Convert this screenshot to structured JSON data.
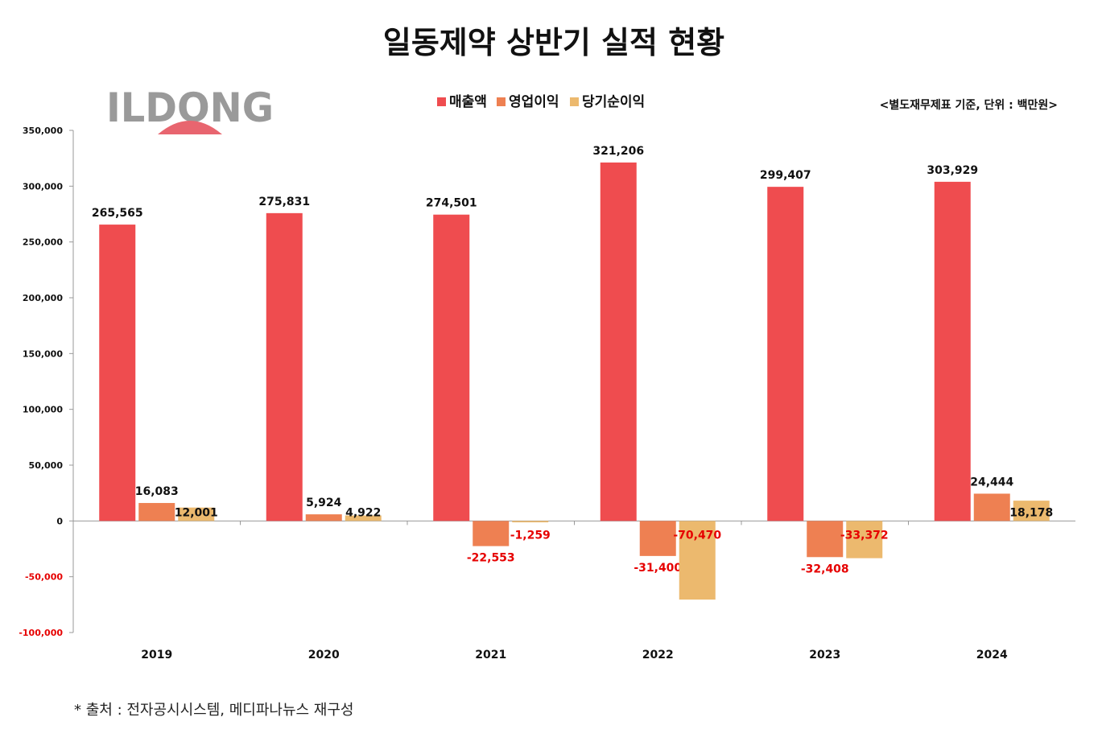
{
  "title": "일동제약 상반기 실적 현황",
  "logo": {
    "text": "ILDONG",
    "arc_color": "#e8656f"
  },
  "unit_note": "<별도재무제표 기준, 단위 : 백만원>",
  "source_note": "* 출처 : 전자공시시스템, 메디파나뉴스 재구성",
  "colors": {
    "negative_label": "#e60000",
    "positive_label": "#111111",
    "axis": "#999999"
  },
  "chart_data": {
    "type": "bar",
    "categories": [
      "2019",
      "2020",
      "2021",
      "2022",
      "2023",
      "2024"
    ],
    "series": [
      {
        "name": "매출액",
        "color": "#ef4c4f",
        "values": [
          265565,
          275831,
          274501,
          321206,
          299407,
          303929
        ],
        "labels": [
          "265,565",
          "275,831",
          "274,501",
          "321,206",
          "299,407",
          "303,929"
        ]
      },
      {
        "name": "영업이익",
        "color": "#ee8052",
        "values": [
          16083,
          5924,
          -22553,
          -31400,
          -32408,
          24444
        ],
        "labels": [
          "16,083",
          "5,924",
          "-22,553",
          "-31,400",
          "-32,408",
          "24,444"
        ]
      },
      {
        "name": "당기순이익",
        "color": "#ecb96e",
        "values": [
          12001,
          4922,
          -1259,
          -70470,
          -33372,
          18178
        ],
        "labels": [
          "12,001",
          "4,922",
          "-1,259",
          "-70,470",
          "-33,372",
          "18,178"
        ]
      }
    ],
    "ylim": [
      -100000,
      350000
    ],
    "yticks": [
      350000,
      300000,
      250000,
      200000,
      150000,
      100000,
      50000,
      0,
      -50000,
      -100000
    ],
    "ytick_labels": [
      "350,000",
      "300,000",
      "250,000",
      "200,000",
      "150,000",
      "100,000",
      "50,000",
      "0",
      "-50,000",
      "-100,000"
    ],
    "legend_position": "top-center",
    "grid": false
  }
}
